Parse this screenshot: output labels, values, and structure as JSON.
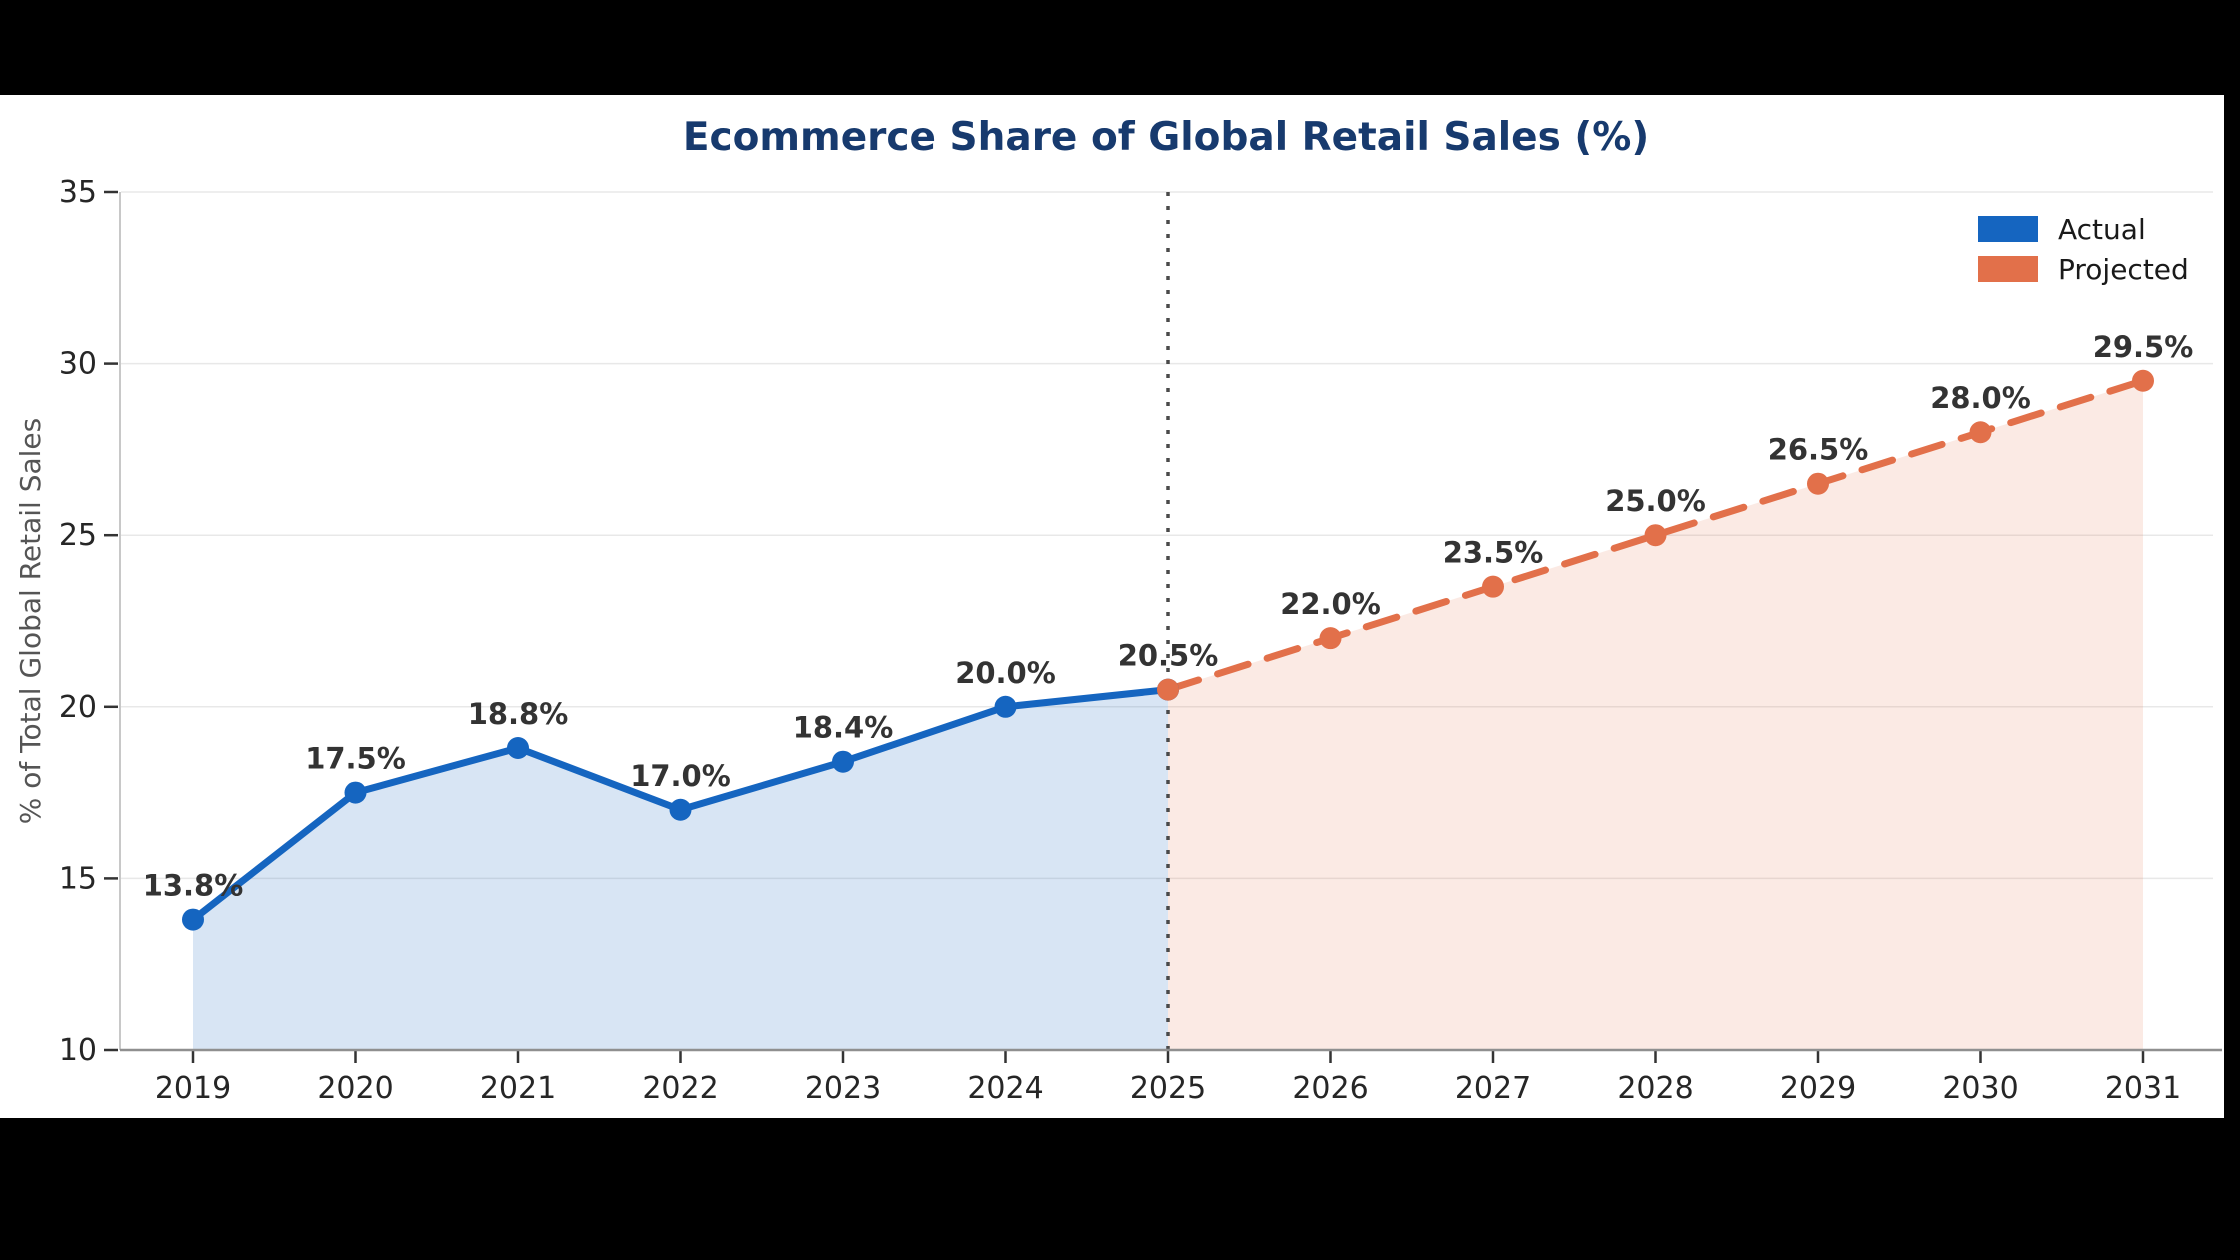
{
  "page": {
    "background_color": "#000000",
    "canvas_color": "#ffffff"
  },
  "chart_data": {
    "type": "line",
    "title": "Ecommerce Share of Global Retail Sales (%)",
    "title_color": "#173a6e",
    "xlabel": "",
    "ylabel": "% of Total Global Retail Sales",
    "ylim": [
      10,
      35
    ],
    "yticks": [
      10,
      15,
      20,
      25,
      30,
      35
    ],
    "x": [
      2019,
      2020,
      2021,
      2022,
      2023,
      2024,
      2025,
      2026,
      2027,
      2028,
      2029,
      2030,
      2031
    ],
    "grid": true,
    "legend_position": "upper right",
    "divider_year": 2025,
    "divider_style": "dotted",
    "series": [
      {
        "name": "Actual",
        "color": "#1565C0",
        "line_style": "solid",
        "fill_opacity": 0.17,
        "x": [
          2019,
          2020,
          2021,
          2022,
          2023,
          2024,
          2025
        ],
        "values": [
          13.8,
          17.5,
          18.8,
          17.0,
          18.4,
          20.0,
          20.5
        ],
        "point_labels": [
          "13.8%",
          "17.5%",
          "18.8%",
          "17.0%",
          "18.4%",
          "20.0%",
          "20.5%"
        ]
      },
      {
        "name": "Projected",
        "color": "#E2704A",
        "line_style": "dashed",
        "fill_opacity": 0.15,
        "x": [
          2025,
          2026,
          2027,
          2028,
          2029,
          2030,
          2031
        ],
        "values": [
          20.5,
          22.0,
          23.5,
          25.0,
          26.5,
          28.0,
          29.5
        ],
        "point_labels": [
          null,
          "22.0%",
          "23.5%",
          "25.0%",
          "26.5%",
          "28.0%",
          "29.5%"
        ]
      }
    ]
  }
}
